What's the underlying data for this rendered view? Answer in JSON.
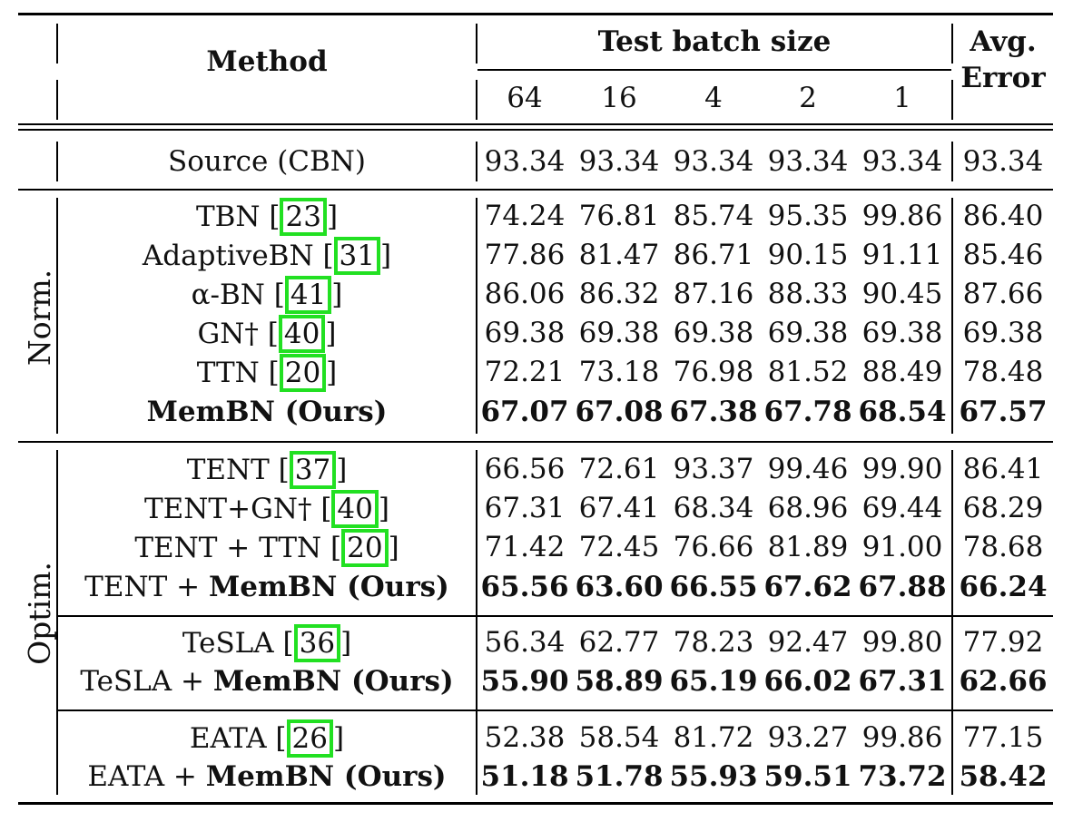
{
  "header": {
    "method": "Method",
    "test_batch_size": "Test batch size",
    "batch_sizes": [
      "64",
      "16",
      "4",
      "2",
      "1"
    ],
    "avg_line1": "Avg.",
    "avg_line2": "Error"
  },
  "groups": {
    "norm": "Norm.",
    "optim": "Optim."
  },
  "rows": [
    {
      "pre": "Source (CBN)",
      "cite": "",
      "post": "",
      "bold": false,
      "values": [
        "93.34",
        "93.34",
        "93.34",
        "93.34",
        "93.34"
      ],
      "avg": "93.34"
    },
    {
      "pre": "TBN [",
      "cite": "23",
      "post": "]",
      "bold": false,
      "values": [
        "74.24",
        "76.81",
        "85.74",
        "95.35",
        "99.86"
      ],
      "avg": "86.40"
    },
    {
      "pre": "AdaptiveBN [",
      "cite": "31",
      "post": "]",
      "bold": false,
      "values": [
        "77.86",
        "81.47",
        "86.71",
        "90.15",
        "91.11"
      ],
      "avg": "85.46"
    },
    {
      "pre": "α-BN [",
      "cite": "41",
      "post": "]",
      "bold": false,
      "values": [
        "86.06",
        "86.32",
        "87.16",
        "88.33",
        "90.45"
      ],
      "avg": "87.66"
    },
    {
      "pre": "GN† [",
      "cite": "40",
      "post": "]",
      "bold": false,
      "values": [
        "69.38",
        "69.38",
        "69.38",
        "69.38",
        "69.38"
      ],
      "avg": "69.38"
    },
    {
      "pre": "TTN [",
      "cite": "20",
      "post": "]",
      "bold": false,
      "values": [
        "72.21",
        "73.18",
        "76.98",
        "81.52",
        "88.49"
      ],
      "avg": "78.48"
    },
    {
      "pre": "MemBN (Ours)",
      "cite": "",
      "post": "",
      "bold": true,
      "values": [
        "67.07",
        "67.08",
        "67.38",
        "67.78",
        "68.54"
      ],
      "avg": "67.57"
    },
    {
      "pre": "TENT [",
      "cite": "37",
      "post": "]",
      "bold": false,
      "values": [
        "66.56",
        "72.61",
        "93.37",
        "99.46",
        "99.90"
      ],
      "avg": "86.41"
    },
    {
      "pre": "TENT+GN† [",
      "cite": "40",
      "post": "]",
      "bold": false,
      "values": [
        "67.31",
        "67.41",
        "68.34",
        "68.96",
        "69.44"
      ],
      "avg": "68.29"
    },
    {
      "pre": "TENT + TTN [",
      "cite": "20",
      "post": "]",
      "bold": false,
      "values": [
        "71.42",
        "72.45",
        "76.66",
        "81.89",
        "91.00"
      ],
      "avg": "78.68"
    },
    {
      "pre": "TENT + ",
      "bold_part": "MemBN (Ours)",
      "cite": "",
      "post": "",
      "bold": true,
      "values": [
        "65.56",
        "63.60",
        "66.55",
        "67.62",
        "67.88"
      ],
      "avg": "66.24"
    },
    {
      "pre": "TeSLA [",
      "cite": "36",
      "post": "]",
      "bold": false,
      "values": [
        "56.34",
        "62.77",
        "78.23",
        "92.47",
        "99.80"
      ],
      "avg": "77.92"
    },
    {
      "pre": "TeSLA + ",
      "bold_part": "MemBN (Ours)",
      "cite": "",
      "post": "",
      "bold": true,
      "values": [
        "55.90",
        "58.89",
        "65.19",
        "66.02",
        "67.31"
      ],
      "avg": "62.66"
    },
    {
      "pre": "EATA [",
      "cite": "26",
      "post": "]",
      "bold": false,
      "values": [
        "52.38",
        "58.54",
        "81.72",
        "93.27",
        "99.86"
      ],
      "avg": "77.15"
    },
    {
      "pre": "EATA + ",
      "bold_part": "MemBN (Ours)",
      "cite": "",
      "post": "",
      "bold": true,
      "values": [
        "51.18",
        "51.78",
        "55.93",
        "59.51",
        "73.72"
      ],
      "avg": "58.42"
    }
  ],
  "colors": {
    "citation_box": "#22e022",
    "rule": "#000000"
  }
}
